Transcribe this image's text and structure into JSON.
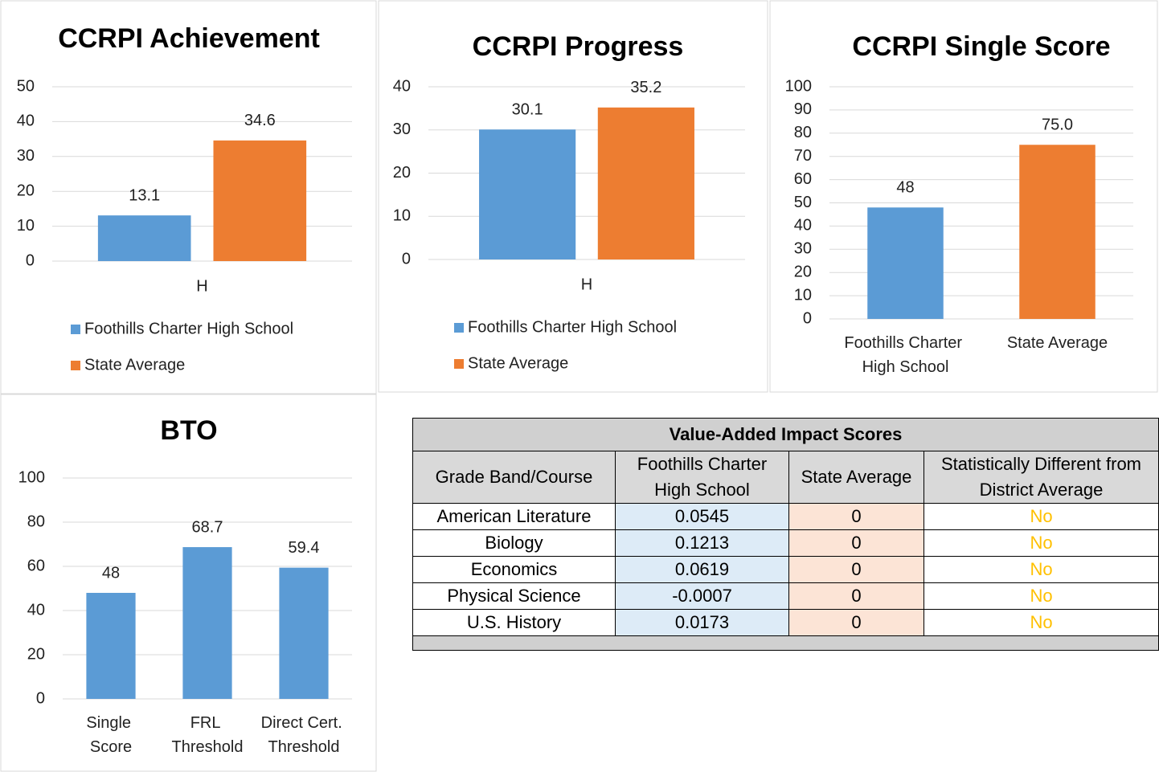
{
  "chart_data": [
    {
      "type": "bar",
      "title": "CCRPI Achievement",
      "categories": [
        "H"
      ],
      "series": [
        {
          "name": "Foothills Charter High School",
          "color": "#5b9bd5",
          "values": [
            13.1
          ]
        },
        {
          "name": "State Average",
          "color": "#ed7d31",
          "values": [
            34.6
          ]
        }
      ],
      "ylim": [
        0,
        50
      ],
      "yticks": [
        0,
        10,
        20,
        30,
        40,
        50
      ],
      "grid": true,
      "legend": "bottom"
    },
    {
      "type": "bar",
      "title": "CCRPI Progress",
      "categories": [
        "H"
      ],
      "series": [
        {
          "name": "Foothills Charter High School",
          "color": "#5b9bd5",
          "values": [
            30.1
          ]
        },
        {
          "name": "State Average",
          "color": "#ed7d31",
          "values": [
            35.2
          ]
        }
      ],
      "ylim": [
        0,
        40
      ],
      "yticks": [
        0,
        10,
        20,
        30,
        40
      ],
      "grid": true,
      "legend": "bottom"
    },
    {
      "type": "bar",
      "title": "CCRPI Single Score",
      "categories": [
        "Foothills Charter High School",
        "State Average"
      ],
      "values": [
        48,
        75
      ],
      "value_labels": [
        "48",
        "75.0"
      ],
      "colors": [
        "#5b9bd5",
        "#ed7d31"
      ],
      "ylim": [
        0,
        100
      ],
      "yticks": [
        0,
        10,
        20,
        30,
        40,
        50,
        60,
        70,
        80,
        90,
        100
      ],
      "grid": true
    },
    {
      "type": "bar",
      "title": "BTO",
      "categories": [
        "Single Score",
        "FRL Threshold",
        "Direct Cert. Threshold"
      ],
      "values": [
        48,
        68.7,
        59.4
      ],
      "color": "#5b9bd5",
      "ylim": [
        0,
        100
      ],
      "yticks": [
        0,
        20,
        40,
        60,
        80,
        100
      ],
      "grid": true
    }
  ],
  "table": {
    "title": "Value-Added Impact Scores",
    "header": [
      "Grade Band/Course",
      "Foothills Charter High School",
      "State Average",
      "Statistically Different from District Average"
    ],
    "rows": [
      [
        "American Literature",
        "0.0545",
        "0",
        "No"
      ],
      [
        "Biology",
        "0.1213",
        "0",
        "No"
      ],
      [
        "Economics",
        "0.0619",
        "0",
        "No"
      ],
      [
        "Physical Science",
        "-0.0007",
        "0",
        "No"
      ],
      [
        "U.S. History",
        "0.0173",
        "0",
        "No"
      ]
    ]
  }
}
